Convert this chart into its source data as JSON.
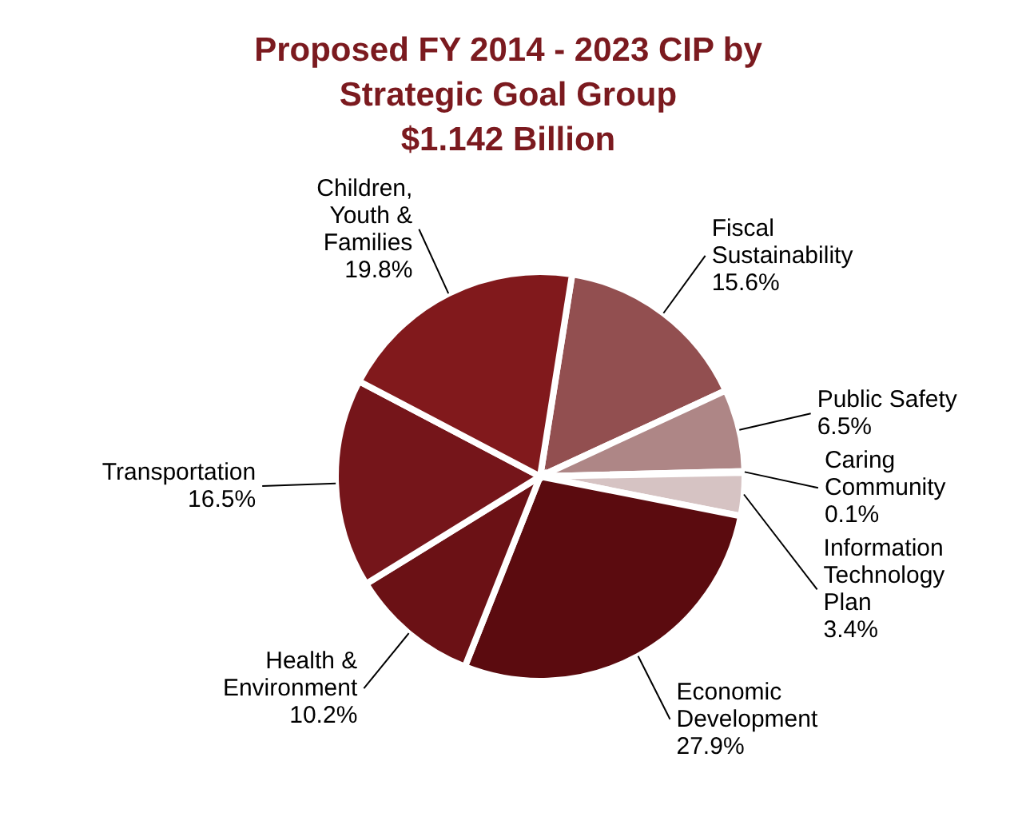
{
  "chart_data": {
    "type": "pie",
    "title": "Proposed FY 2014 - 2023 CIP by Strategic Goal Group",
    "subtitle": "$1.142 Billion",
    "categories": [
      "Fiscal Sustainability",
      "Public Safety",
      "Caring Community",
      "Information Technology Plan",
      "Economic Development",
      "Health & Environment",
      "Transportation",
      "Children, Youth & Families"
    ],
    "values": [
      15.6,
      6.5,
      0.1,
      3.4,
      27.9,
      10.2,
      16.5,
      19.8
    ],
    "value_labels": [
      "15.6%",
      "6.5%",
      "0.1%",
      "3.4%",
      "27.9%",
      "10.2%",
      "16.5%",
      "19.8%"
    ],
    "colors": [
      "#924f50",
      "#ae8686",
      "#c9aeae",
      "#d6c3c3",
      "#5b0b0f",
      "#6b1115",
      "#75151a",
      "#81191c"
    ]
  }
}
